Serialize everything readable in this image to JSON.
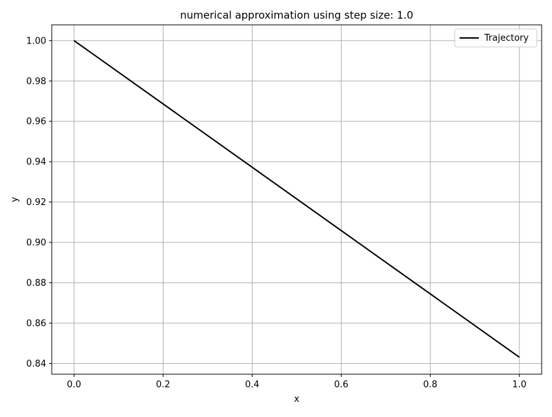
{
  "chart_data": {
    "type": "line",
    "title": "numerical approximation using step size: 1.0",
    "xlabel": "x",
    "ylabel": "y",
    "xlim": [
      -0.05,
      1.05
    ],
    "ylim": [
      0.8347,
      1.0078
    ],
    "xticks": [
      0.0,
      0.2,
      0.4,
      0.6,
      0.8,
      1.0
    ],
    "xtick_labels": [
      "0.0",
      "0.2",
      "0.4",
      "0.6",
      "0.8",
      "1.0"
    ],
    "yticks": [
      0.84,
      0.86,
      0.88,
      0.9,
      0.92,
      0.94,
      0.96,
      0.98,
      1.0
    ],
    "ytick_labels": [
      "0.84",
      "0.86",
      "0.88",
      "0.90",
      "0.92",
      "0.94",
      "0.96",
      "0.98",
      "1.00"
    ],
    "grid": true,
    "legend_position": "top-right",
    "series": [
      {
        "name": "Trajectory",
        "color": "#000000",
        "x": [
          0.0,
          1.0
        ],
        "y": [
          1.0,
          0.8431
        ]
      }
    ]
  }
}
